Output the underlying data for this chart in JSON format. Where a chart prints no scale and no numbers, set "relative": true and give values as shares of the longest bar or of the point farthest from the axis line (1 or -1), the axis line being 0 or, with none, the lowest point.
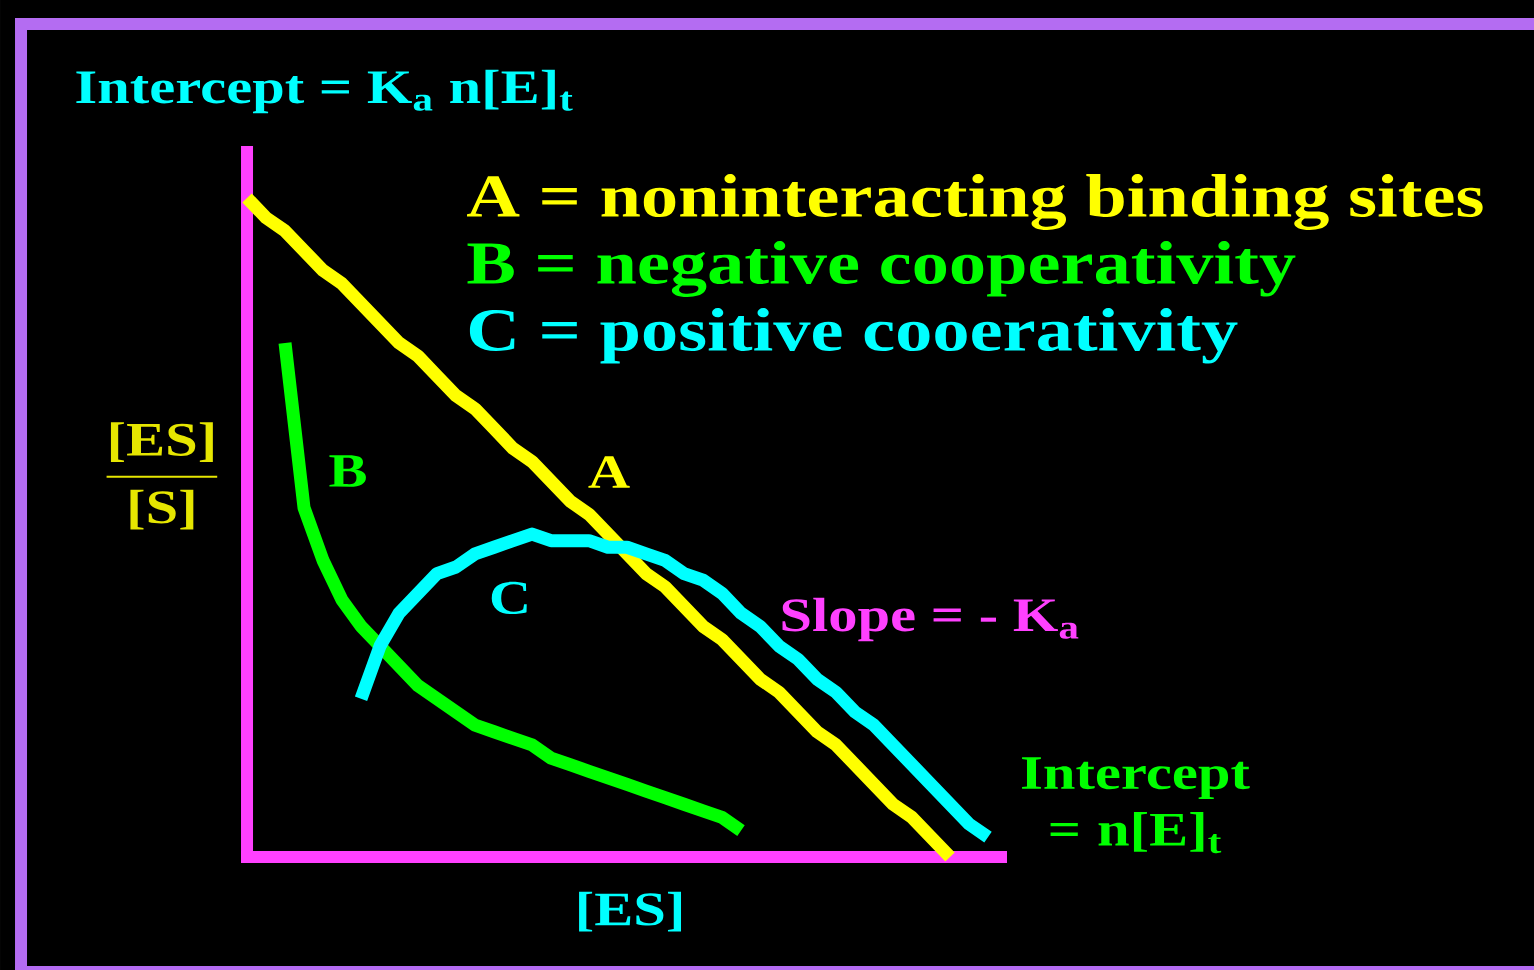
{
  "chart_data": {
    "type": "line",
    "relative": true,
    "categories": [
      null,
      null,
      null,
      null,
      null,
      null,
      null,
      null,
      null,
      null,
      null,
      null,
      null,
      null,
      null,
      null,
      null,
      null,
      null,
      null,
      null,
      null,
      null,
      null,
      null,
      null,
      null,
      null,
      null,
      null,
      null,
      null,
      null,
      null,
      null,
      null,
      null,
      null,
      null,
      null,
      null
    ],
    "series": [
      {
        "name": "A = noninteracting binding sites",
        "color": "#ffff00",
        "values": [
          1.0,
          0.97,
          0.95,
          0.92,
          0.89,
          0.87,
          0.84,
          0.81,
          0.78,
          0.76,
          0.73,
          0.7,
          0.68,
          0.65,
          0.62,
          0.6,
          0.57,
          0.54,
          0.52,
          0.49,
          0.46,
          0.43,
          0.41,
          0.38,
          0.35,
          0.33,
          0.3,
          0.27,
          0.25,
          0.22,
          0.19,
          0.17,
          0.14,
          0.11,
          0.08,
          0.06,
          0.03,
          0.0,
          null,
          null,
          null
        ]
      },
      {
        "name": "B = negative cooperativity",
        "color": "#00ff00",
        "values": [
          null,
          null,
          0.78,
          0.53,
          0.45,
          0.39,
          0.35,
          0.32,
          0.29,
          0.26,
          0.24,
          0.22,
          0.2,
          0.19,
          0.18,
          0.17,
          0.15,
          0.14,
          0.13,
          0.12,
          0.11,
          0.1,
          0.09,
          0.08,
          0.07,
          0.06,
          0.04,
          null,
          null,
          null,
          null,
          null,
          null,
          null,
          null,
          null,
          null,
          null,
          null,
          null,
          null
        ]
      },
      {
        "name": "C = positive cooerativity",
        "color": "#00ffff",
        "values": [
          null,
          null,
          null,
          null,
          null,
          null,
          0.24,
          0.32,
          0.37,
          0.4,
          0.43,
          0.44,
          0.46,
          0.47,
          0.48,
          0.49,
          0.48,
          0.48,
          0.48,
          0.47,
          0.47,
          0.46,
          0.45,
          0.43,
          0.42,
          0.4,
          0.37,
          0.35,
          0.32,
          0.3,
          0.27,
          0.25,
          0.22,
          0.2,
          0.17,
          0.14,
          0.11,
          0.08,
          0.05,
          0.03,
          null
        ]
      }
    ],
    "xlabel": "[ES]",
    "ylabel": "\\frac{\\text{[ES]}}{\\text{[S]}}",
    "legend": "top right",
    "annotations": [
      "Intercept = K$_{a}$ n[E]$_{t}$",
      "A",
      "B",
      "C",
      "Slope = - K$_{a}$",
      "Intercept = n[E]$_{t}$"
    ]
  }
}
